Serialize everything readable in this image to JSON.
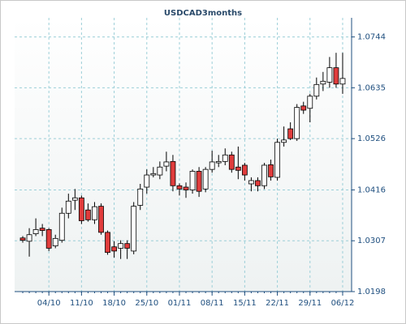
{
  "chart_data": {
    "type": "candlestick",
    "title": "USDCAD3months",
    "categories": [
      null,
      null,
      null,
      null,
      "04/10",
      null,
      null,
      null,
      null,
      "11/10",
      null,
      null,
      null,
      null,
      "18/10",
      null,
      null,
      null,
      null,
      "25/10",
      null,
      null,
      null,
      null,
      "01/11",
      null,
      null,
      null,
      null,
      "08/11",
      null,
      null,
      null,
      null,
      "15/11",
      null,
      null,
      null,
      null,
      "22/11",
      null,
      null,
      null,
      null,
      "29/11",
      null,
      null,
      null,
      null,
      "06/12"
    ],
    "open": [
      1.0313,
      1.0306,
      1.0322,
      1.0334,
      1.0331,
      1.0296,
      1.0308,
      1.0366,
      1.0394,
      1.0399,
      1.0373,
      1.0352,
      1.0381,
      1.0325,
      1.0294,
      1.0291,
      1.0301,
      1.0285,
      1.0383,
      1.0422,
      1.0448,
      1.0448,
      1.0467,
      1.0477,
      1.0425,
      1.0422,
      1.0416,
      1.0456,
      1.0418,
      1.046,
      1.0474,
      1.0477,
      1.0491,
      1.0465,
      1.0469,
      1.0429,
      1.0436,
      1.0425,
      1.047,
      1.0443,
      1.0518,
      1.0547,
      1.0526,
      1.0596,
      1.0591,
      1.0617,
      1.0643,
      1.0647,
      1.0678,
      1.0643
    ],
    "high": [
      1.0317,
      1.0334,
      1.0355,
      1.0343,
      1.0334,
      1.032,
      1.0378,
      1.0408,
      1.0418,
      1.0404,
      1.0387,
      1.039,
      1.0387,
      1.0329,
      1.0306,
      1.0308,
      1.0308,
      1.039,
      1.0429,
      1.046,
      1.0465,
      1.0477,
      1.0498,
      1.0491,
      1.043,
      1.0432,
      1.046,
      1.0465,
      1.0465,
      1.05,
      1.0491,
      1.0505,
      1.0498,
      1.0509,
      1.0474,
      1.0443,
      1.0443,
      1.0474,
      1.0481,
      1.0526,
      1.0552,
      1.0561,
      1.06,
      1.0605,
      1.0622,
      1.0657,
      1.0669,
      1.0701,
      1.071,
      1.071
    ],
    "low": [
      1.0303,
      1.0273,
      1.0317,
      1.0317,
      1.0285,
      1.0291,
      1.0303,
      1.0355,
      1.0373,
      1.0343,
      1.0348,
      1.0343,
      1.032,
      1.0277,
      1.0271,
      1.0268,
      1.0268,
      1.0278,
      1.0373,
      1.0408,
      1.0443,
      1.0439,
      1.0456,
      1.0413,
      1.0404,
      1.0399,
      1.0408,
      1.0401,
      1.0411,
      1.0453,
      1.0465,
      1.0469,
      1.0453,
      1.0439,
      1.0436,
      1.0413,
      1.0413,
      1.0418,
      1.0436,
      1.0436,
      1.0509,
      1.0523,
      1.0521,
      1.0579,
      1.0561,
      1.061,
      1.0628,
      1.0635,
      1.0635,
      1.0622
    ],
    "close": [
      1.0308,
      1.032,
      1.0331,
      1.0329,
      1.0291,
      1.0312,
      1.0366,
      1.0392,
      1.0399,
      1.035,
      1.0352,
      1.038,
      1.0325,
      1.0282,
      1.0285,
      1.0301,
      1.0291,
      1.0381,
      1.0418,
      1.0448,
      1.0451,
      1.0465,
      1.0476,
      1.0425,
      1.0418,
      1.0416,
      1.0456,
      1.0413,
      1.046,
      1.0476,
      1.0477,
      1.0491,
      1.046,
      1.0458,
      1.0448,
      1.0436,
      1.0425,
      1.0469,
      1.0444,
      1.0518,
      1.0523,
      1.0526,
      1.0593,
      1.0587,
      1.0617,
      1.0642,
      1.0649,
      1.0678,
      1.0643,
      1.0655
    ],
    "up_color": "#ffffff",
    "down_color": "#e03c3c",
    "ylim": [
      1.0198,
      1.0785
    ],
    "yticks": [
      1.0198,
      1.0307,
      1.0416,
      1.0526,
      1.0635,
      1.0744
    ],
    "grid": true
  }
}
